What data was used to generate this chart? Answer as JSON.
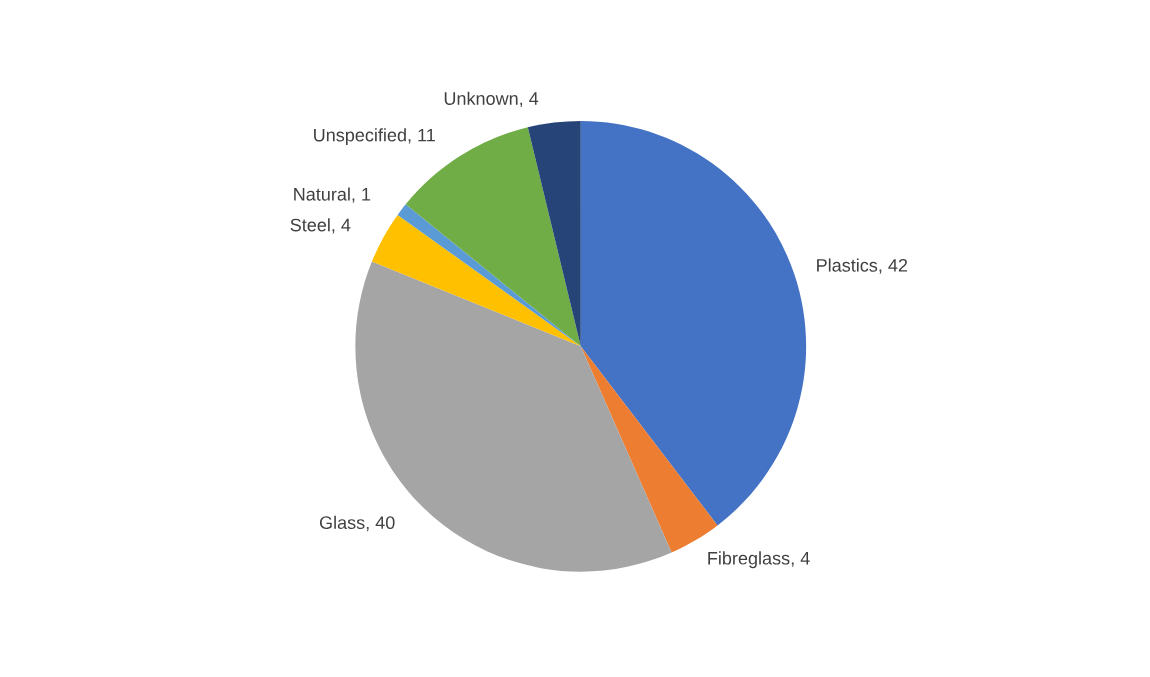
{
  "chart_data": {
    "type": "pie",
    "categories": [
      "Plastics",
      "Fibreglass",
      "Glass",
      "Steel",
      "Natural",
      "Unspecified",
      "Unknown"
    ],
    "values": [
      42,
      4,
      40,
      4,
      1,
      11,
      4
    ],
    "colors": [
      "#4472c4",
      "#ed7d31",
      "#a5a5a5",
      "#ffc000",
      "#5b9bd5",
      "#70ad47",
      "#264478"
    ],
    "value_labels": [
      ", 42",
      ", 4",
      ", 40",
      ", 4",
      ", 1",
      ", 11",
      ", 4"
    ],
    "legend": false
  }
}
